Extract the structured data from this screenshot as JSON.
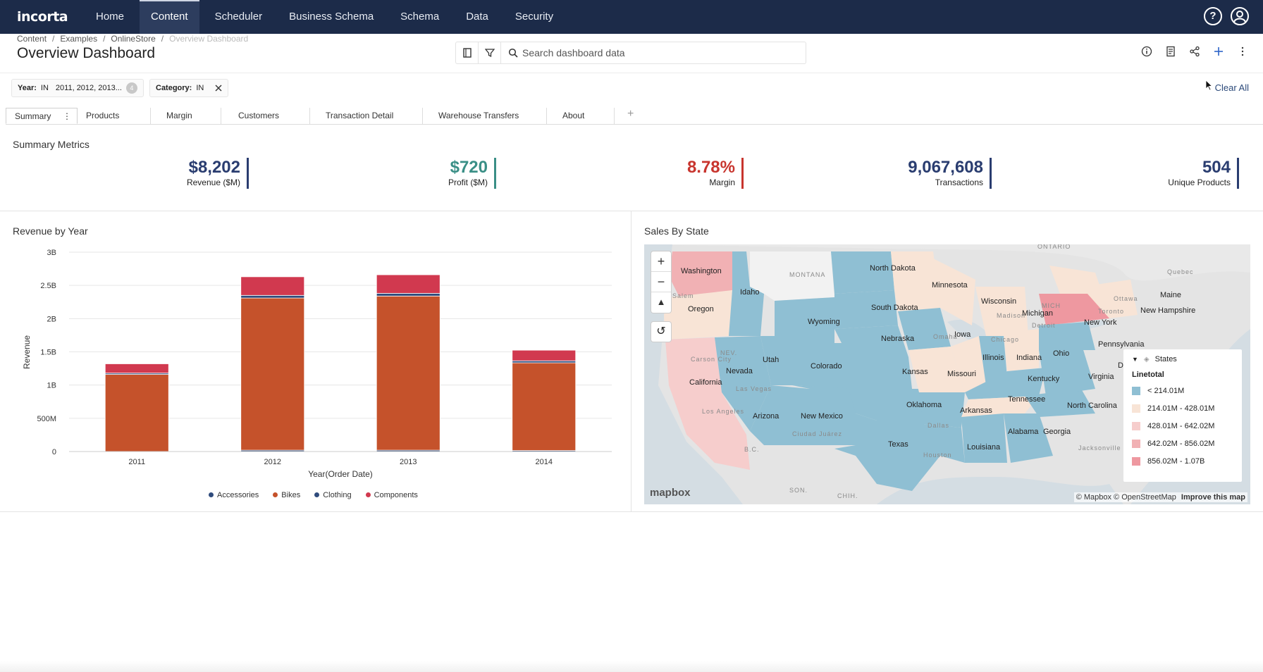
{
  "nav": {
    "logo": "incorta",
    "items": [
      "Home",
      "Content",
      "Scheduler",
      "Business Schema",
      "Schema",
      "Data",
      "Security"
    ],
    "active": "Content",
    "help_icon": "help-circle-icon",
    "user_icon": "user-circle-icon"
  },
  "breadcrumb": [
    "Content",
    "Examples",
    "OnlineStore",
    "Overview Dashboard"
  ],
  "page_title": "Overview Dashboard",
  "search": {
    "placeholder": "Search dashboard data"
  },
  "filters": [
    {
      "label": "Year:",
      "op": "IN",
      "value": "2011, 2012, 2013...",
      "count": "4"
    },
    {
      "label": "Category:",
      "op": "IN"
    }
  ],
  "clear_all": "Clear All",
  "tabs": [
    "Summary",
    "Products",
    "Margin",
    "Customers",
    "Transaction Detail",
    "Warehouse Transfers",
    "About"
  ],
  "summary": {
    "title": "Summary Metrics",
    "metrics": [
      {
        "value": "$8,202",
        "label": "Revenue ($M)",
        "color": "#2a3d70"
      },
      {
        "value": "$720",
        "label": "Profit ($M)",
        "color": "#3a8f86"
      },
      {
        "value": "8.78%",
        "label": "Margin",
        "color": "#c8352e"
      },
      {
        "value": "9,067,608",
        "label": "Transactions",
        "color": "#2a3d70"
      },
      {
        "value": "504",
        "label": "Unique Products",
        "color": "#2a3d70"
      }
    ]
  },
  "chart_data": {
    "type": "bar",
    "stacked": true,
    "title": "Revenue by Year",
    "xlabel": "Year(Order Date)",
    "ylabel": "Revenue",
    "categories": [
      "2011",
      "2012",
      "2013",
      "2014"
    ],
    "ylim": [
      0,
      3000000000
    ],
    "yticks": [
      "0",
      "500M",
      "1B",
      "1.5B",
      "2B",
      "2.5B",
      "3B"
    ],
    "series": [
      {
        "name": "Accessories",
        "color": "#2f4b7c",
        "values": [
          0,
          20000000,
          20000000,
          15000000
        ]
      },
      {
        "name": "Bikes",
        "color": "#c5522b",
        "values": [
          1160000000,
          2290000000,
          2320000000,
          1320000000
        ]
      },
      {
        "name": "Clothing",
        "color": "#2f4b7c",
        "values": [
          20000000,
          40000000,
          40000000,
          30000000
        ]
      },
      {
        "name": "Components",
        "color": "#d1394f",
        "values": [
          140000000,
          280000000,
          280000000,
          160000000
        ]
      }
    ],
    "legend_position": "bottom"
  },
  "map": {
    "title": "Sales By State",
    "legend_title": "States",
    "legend_field": "Linetotal",
    "legend_items": [
      {
        "label": "< 214.01M",
        "color": "#8fbfd3"
      },
      {
        "label": "214.01M - 428.01M",
        "color": "#f8e4d6"
      },
      {
        "label": "428.01M - 642.02M",
        "color": "#f6cdcc"
      },
      {
        "label": "642.02M - 856.02M",
        "color": "#f1b1b4"
      },
      {
        "label": "856.02M - 1.07B",
        "color": "#ee98a0"
      }
    ],
    "states": [
      "Washington",
      "Oregon",
      "California",
      "Idaho",
      "Nevada",
      "Utah",
      "Arizona",
      "Wyoming",
      "Colorado",
      "New Mexico",
      "North Dakota",
      "South Dakota",
      "Nebraska",
      "Kansas",
      "Oklahoma",
      "Texas",
      "Minnesota",
      "Iowa",
      "Missouri",
      "Arkansas",
      "Louisiana",
      "Wisconsin",
      "Illinois",
      "Michigan",
      "Indiana",
      "Ohio",
      "Kentucky",
      "Tennessee",
      "Alabama",
      "Georgia",
      "North Carolina",
      "Virginia",
      "New York",
      "New Hampshire",
      "Maine",
      "Pennsylvania"
    ],
    "geo_labels": [
      "MONTANA",
      "NEV.",
      "Carson City",
      "Salem",
      "Las Vegas",
      "Los Angeles",
      "Ciudad Juárez",
      "Dallas",
      "Houston",
      "Omaha",
      "Chicago",
      "Detroit",
      "Madison",
      "Toronto",
      "Ottawa",
      "Quebec",
      "Jacksonville",
      "B.C.",
      "SON.",
      "CHIH.",
      "MICH",
      "ONTARIO",
      "De"
    ],
    "attribution": "© Mapbox © OpenStreetMap",
    "improve": "Improve this map",
    "logo": "mapbox"
  }
}
